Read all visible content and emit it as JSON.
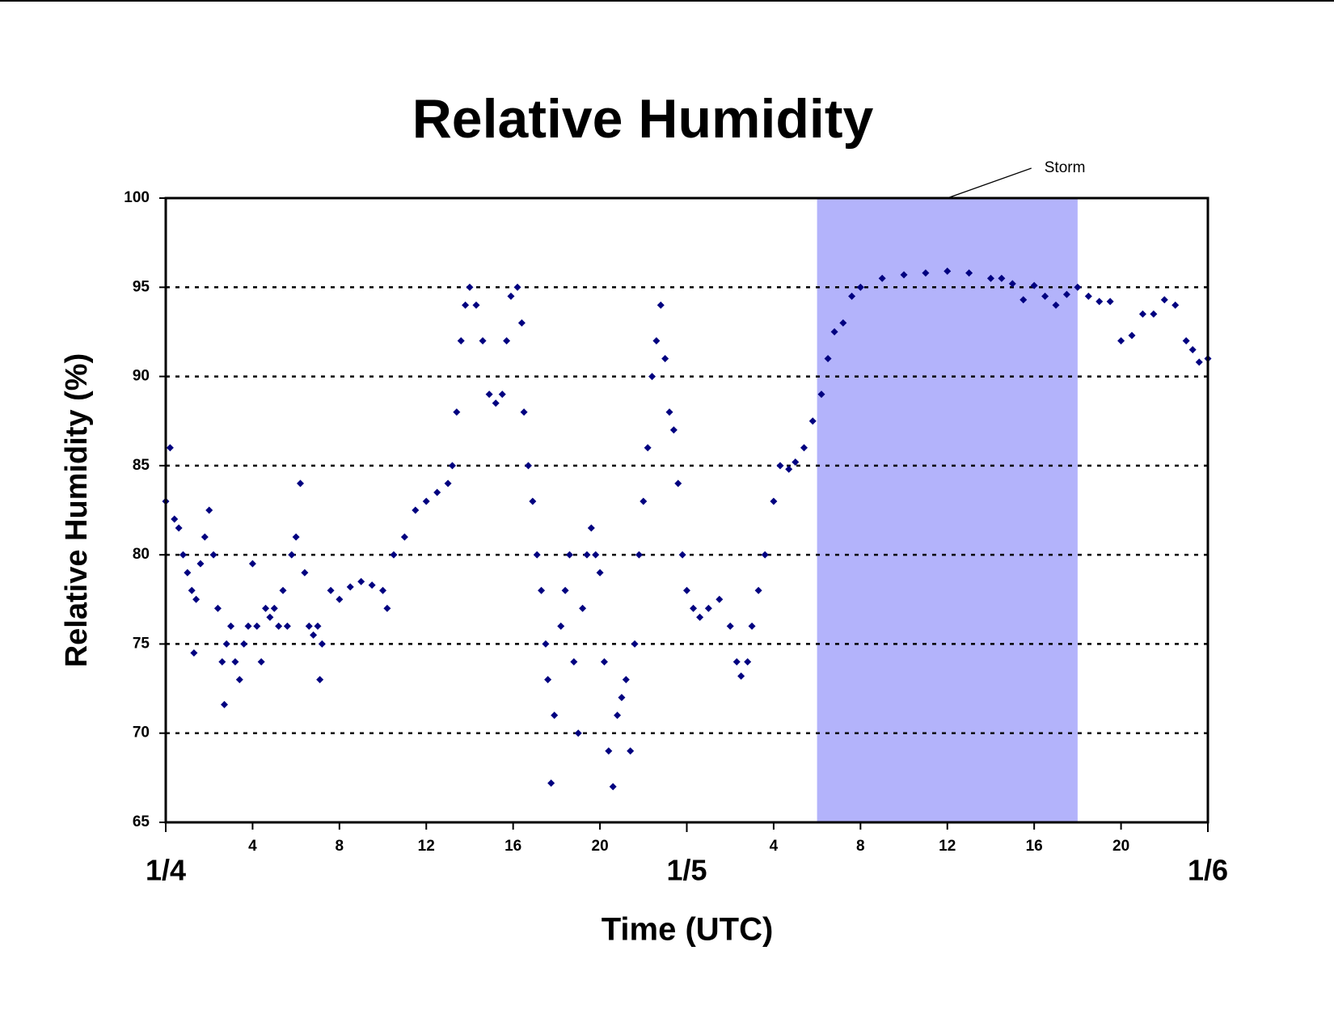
{
  "chart_data": {
    "type": "scatter",
    "title": "Relative Humidity",
    "xlabel": "Time (UTC)",
    "ylabel": "Relative Humidity (%)",
    "xlim": [
      0,
      48
    ],
    "ylim": [
      65,
      100
    ],
    "yticks": [
      65,
      70,
      75,
      80,
      85,
      90,
      95,
      100
    ],
    "xticks": [
      4,
      8,
      12,
      16,
      20,
      {
        "value": 28,
        "label": "4"
      },
      {
        "value": 32,
        "label": "8"
      },
      {
        "value": 36,
        "label": "12"
      },
      {
        "value": 40,
        "label": "16"
      },
      {
        "value": 44,
        "label": "20"
      }
    ],
    "date_ticks": [
      {
        "value": 0,
        "label": "1/4"
      },
      {
        "value": 24,
        "label": "1/5"
      },
      {
        "value": 48,
        "label": "1/6"
      }
    ],
    "grid": true,
    "shaded_span": {
      "label": "Storm",
      "xlim": [
        30,
        42
      ],
      "color": "#b3b3fb"
    },
    "x": [
      0,
      0.2,
      0.4,
      0.6,
      0.8,
      1,
      1.2,
      1.3,
      1.4,
      1.6,
      1.8,
      2,
      2.2,
      2.4,
      2.6,
      2.7,
      2.8,
      3,
      3.2,
      3.4,
      3.6,
      3.8,
      4,
      4.2,
      4.4,
      4.6,
      4.8,
      5,
      5.2,
      5.4,
      5.6,
      5.8,
      6,
      6.2,
      6.4,
      6.6,
      6.8,
      7,
      7.1,
      7.2,
      7.6,
      8,
      8.5,
      9,
      9.5,
      10,
      10.2,
      10.5,
      11,
      11.5,
      12,
      12.5,
      13,
      13.2,
      13.4,
      13.6,
      13.8,
      14,
      14.3,
      14.6,
      14.9,
      15.2,
      15.5,
      15.7,
      15.9,
      16.2,
      16.4,
      16.5,
      16.7,
      16.9,
      17.1,
      17.3,
      17.5,
      17.6,
      17.75,
      17.9,
      18.2,
      18.4,
      18.6,
      18.8,
      19,
      19.2,
      19.4,
      19.6,
      19.8,
      20,
      20.2,
      20.4,
      20.6,
      20.8,
      21,
      21.2,
      21.4,
      21.6,
      21.8,
      22,
      22.2,
      22.4,
      22.6,
      22.8,
      23,
      23.2,
      23.4,
      23.6,
      23.8,
      24,
      24.3,
      24.6,
      25,
      25.5,
      26,
      26.3,
      26.5,
      26.8,
      27,
      27.3,
      27.6,
      28,
      28.3,
      28.7,
      29,
      29.4,
      29.8,
      30.2,
      30.5,
      30.8,
      31.2,
      31.6,
      32,
      33,
      34,
      35,
      36,
      37,
      38,
      38.5,
      39,
      39.5,
      40,
      40.5,
      41,
      41.5,
      42,
      42.5,
      43,
      43.5,
      44,
      44.5,
      45,
      45.5,
      46,
      46.5,
      47,
      47.3,
      47.6,
      48
    ],
    "series": [
      {
        "color": "#000080",
        "values": [
          83,
          86,
          82,
          81.5,
          80,
          79,
          78,
          74.5,
          77.5,
          79.5,
          81,
          82.5,
          80,
          77,
          74,
          71.6,
          75,
          76,
          74,
          73,
          75,
          76,
          79.5,
          76,
          74,
          77,
          76.5,
          77,
          76,
          78,
          76,
          80,
          81,
          84,
          79,
          76,
          75.5,
          76,
          73,
          75,
          78,
          77.5,
          78.2,
          78.5,
          78.3,
          78,
          77,
          80,
          81,
          82.5,
          83,
          83.5,
          84,
          85,
          88,
          92,
          94,
          95,
          94,
          92,
          89,
          88.5,
          89,
          92,
          94.5,
          95,
          93,
          88,
          85,
          83,
          80,
          78,
          75,
          73,
          67.2,
          71,
          76,
          78,
          80,
          74,
          70,
          77,
          80,
          81.5,
          80,
          79,
          74,
          69,
          67,
          71,
          72,
          73,
          69,
          75,
          80,
          83,
          86,
          90,
          92,
          94,
          91,
          88,
          87,
          84,
          80,
          78,
          77,
          76.5,
          77,
          77.5,
          76,
          74,
          73.2,
          74,
          76,
          78,
          80,
          83,
          85,
          84.8,
          85.2,
          86,
          87.5,
          89,
          91,
          92.5,
          93,
          94.5,
          95,
          95.5,
          95.7,
          95.8,
          95.9,
          95.8,
          95.5,
          95.5,
          95.2,
          94.3,
          95.1,
          94.5,
          94,
          94.6,
          95,
          94.5,
          94.2,
          94.2,
          92,
          92.3,
          93.5,
          93.5,
          94.3,
          94,
          92,
          91.5,
          90.8,
          91
        ]
      }
    ]
  }
}
